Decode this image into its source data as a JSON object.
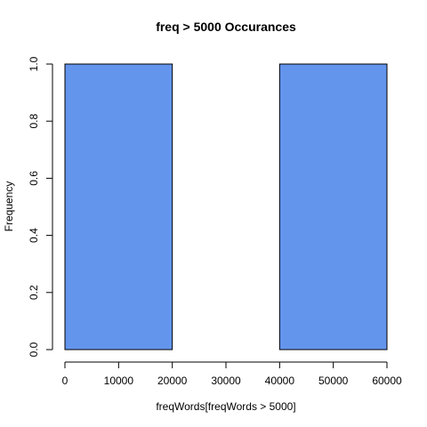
{
  "chart_data": {
    "type": "bar",
    "title": "freq > 5000 Occurances",
    "xlabel": "freqWords[freqWords > 5000]",
    "ylabel": "Frequency",
    "bins": [
      {
        "start": 0,
        "end": 20000,
        "count": 1
      },
      {
        "start": 20000,
        "end": 40000,
        "count": 0
      },
      {
        "start": 40000,
        "end": 60000,
        "count": 1
      }
    ],
    "xlim": [
      0,
      60000
    ],
    "ylim": [
      0,
      1
    ],
    "x_ticks": [
      0,
      10000,
      20000,
      30000,
      40000,
      50000,
      60000
    ],
    "x_tick_labels": [
      "0",
      "10000",
      "20000",
      "30000",
      "40000",
      "50000",
      "60000"
    ],
    "y_ticks": [
      0,
      0.2,
      0.4,
      0.6,
      0.8,
      1.0
    ],
    "y_tick_labels": [
      "0.0",
      "0.2",
      "0.4",
      "0.6",
      "0.8",
      "1.0"
    ],
    "bar_color": "#6495ED",
    "grid": false,
    "legend": "none"
  }
}
